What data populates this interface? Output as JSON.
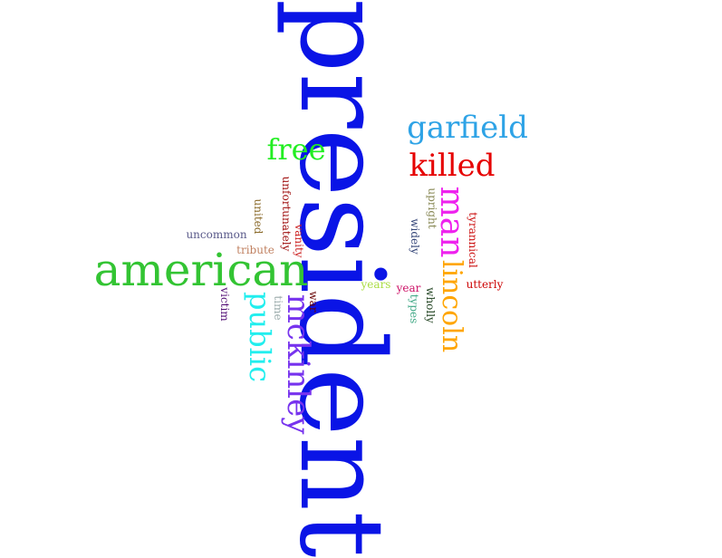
{
  "words": [
    {
      "text": "president",
      "color": "#0a14e6",
      "orientation": "vertical"
    },
    {
      "text": "american",
      "color": "#33c433",
      "orientation": "horizontal"
    },
    {
      "text": "garfield",
      "color": "#2ea3e6",
      "orientation": "horizontal"
    },
    {
      "text": "killed",
      "color": "#e60000",
      "orientation": "horizontal"
    },
    {
      "text": "free",
      "color": "#22ee22",
      "orientation": "horizontal"
    },
    {
      "text": "man",
      "color": "#ee22ee",
      "orientation": "vertical"
    },
    {
      "text": "lincoln",
      "color": "#ffa500",
      "orientation": "vertical"
    },
    {
      "text": "mckinley",
      "color": "#7733ee",
      "orientation": "vertical"
    },
    {
      "text": "public",
      "color": "#22eeee",
      "orientation": "vertical"
    },
    {
      "text": "uncommon",
      "color": "#5a5a8a",
      "orientation": "horizontal"
    },
    {
      "text": "tribute",
      "color": "#c08060",
      "orientation": "horizontal"
    },
    {
      "text": "united",
      "color": "#8a6a2a",
      "orientation": "vertical"
    },
    {
      "text": "unfortunately",
      "color": "#a01010",
      "orientation": "vertical"
    },
    {
      "text": "vanity",
      "color": "#cc2222",
      "orientation": "vertical"
    },
    {
      "text": "victim",
      "color": "#551177",
      "orientation": "vertical"
    },
    {
      "text": "time",
      "color": "#9aaaaa",
      "orientation": "vertical"
    },
    {
      "text": "war",
      "color": "#660000",
      "orientation": "vertical"
    },
    {
      "text": "years",
      "color": "#aadd44",
      "orientation": "horizontal"
    },
    {
      "text": "year",
      "color": "#cc1166",
      "orientation": "horizontal"
    },
    {
      "text": "upright",
      "color": "#888855",
      "orientation": "vertical"
    },
    {
      "text": "widely",
      "color": "#334477",
      "orientation": "vertical"
    },
    {
      "text": "tyrannical",
      "color": "#cc1111",
      "orientation": "vertical"
    },
    {
      "text": "utterly",
      "color": "#cc0000",
      "orientation": "horizontal"
    },
    {
      "text": "wholly",
      "color": "#224422",
      "orientation": "vertical"
    },
    {
      "text": "types",
      "color": "#44aa88",
      "orientation": "vertical"
    }
  ]
}
